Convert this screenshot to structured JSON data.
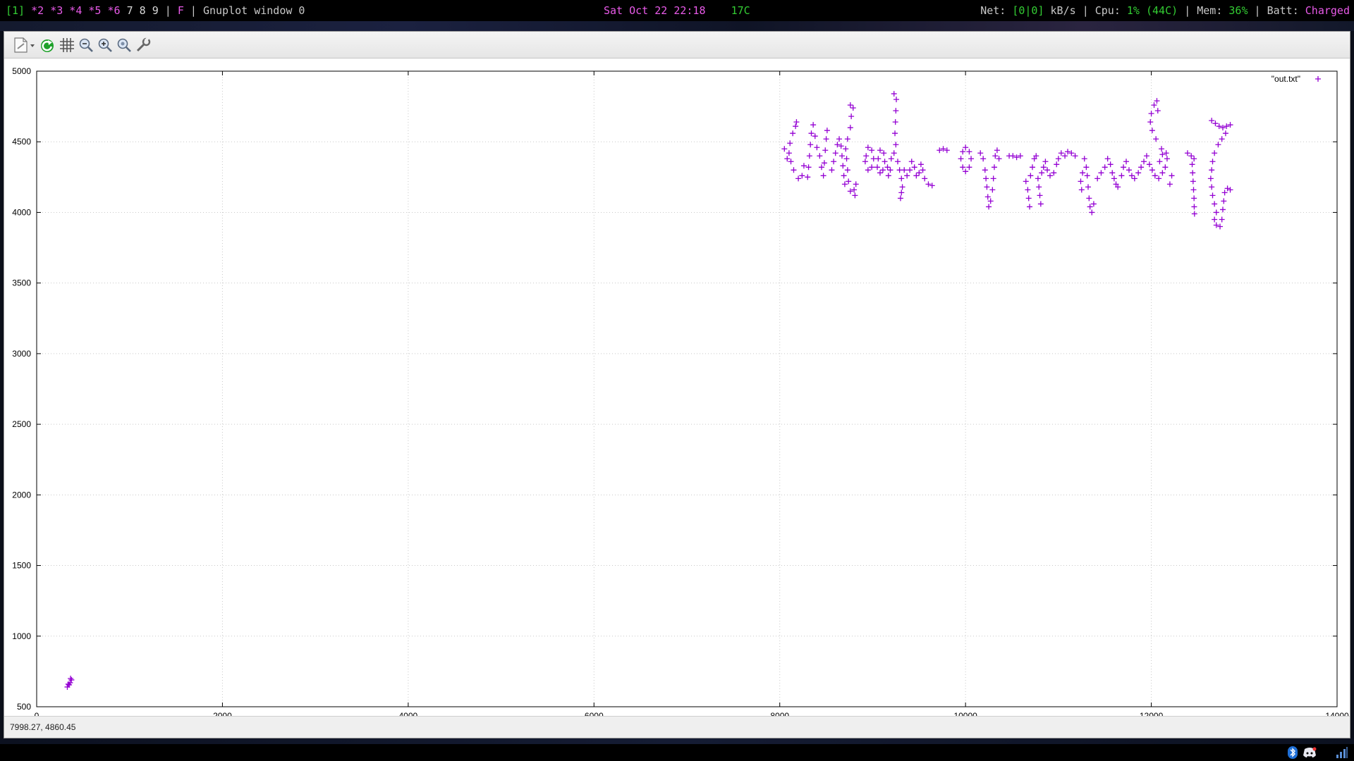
{
  "statusbar_top": {
    "workspace_current": "[1]",
    "workspaces_active": "*2 *3 *4 *5 *6",
    "workspaces_idle": "7 8 9",
    "separator": "|",
    "layout": "F",
    "window_title": "Gnuplot window 0",
    "datetime": "Sat Oct 22 22:18",
    "temperature": "17C",
    "net_label": "Net:",
    "net_value": "[0|0]",
    "net_unit": "kB/s",
    "cpu_label": "Cpu:",
    "cpu_value": "1%",
    "cpu_temp": "(44C)",
    "mem_label": "Mem:",
    "mem_value": "36%",
    "batt_label": "Batt:",
    "batt_value": "Charged"
  },
  "toolbar": {
    "icons": [
      "export-icon",
      "replot-icon",
      "grid-icon",
      "zoom-out-icon",
      "zoom-in-icon",
      "zoom-fit-icon",
      "settings-icon"
    ]
  },
  "plot_status": {
    "coordinates": "7998.27,  4860.45"
  },
  "colors": {
    "series": "#9400d3",
    "grid": "#c8c8c8",
    "accent_green": "#33cc33",
    "accent_magenta": "#e85ae8"
  },
  "chart_data": {
    "type": "scatter",
    "title": "",
    "xlabel": "",
    "ylabel": "",
    "xlim": [
      0,
      14000
    ],
    "ylim": [
      500,
      5000
    ],
    "xticks": [
      "0",
      "2000",
      "4000",
      "6000",
      "8000",
      "10000",
      "12000",
      "14000"
    ],
    "yticks": [
      "500",
      "1000",
      "1500",
      "2000",
      "2500",
      "3000",
      "3500",
      "4000",
      "4500",
      "5000"
    ],
    "grid": true,
    "legend_position": "top-right",
    "marker": "+",
    "series": [
      {
        "name": "\"out.txt\"",
        "points": [
          [
            330,
            640
          ],
          [
            350,
            655
          ],
          [
            360,
            670
          ],
          [
            375,
            690
          ],
          [
            340,
            660
          ],
          [
            365,
            700
          ],
          [
            8120,
            4360
          ],
          [
            8100,
            4420
          ],
          [
            8110,
            4490
          ],
          [
            8140,
            4560
          ],
          [
            8170,
            4610
          ],
          [
            8180,
            4640
          ],
          [
            8150,
            4300
          ],
          [
            8200,
            4240
          ],
          [
            8240,
            4260
          ],
          [
            8260,
            4330
          ],
          [
            8050,
            4450
          ],
          [
            8080,
            4380
          ],
          [
            8300,
            4250
          ],
          [
            8310,
            4320
          ],
          [
            8320,
            4400
          ],
          [
            8330,
            4480
          ],
          [
            8340,
            4560
          ],
          [
            8360,
            4620
          ],
          [
            8380,
            4540
          ],
          [
            8400,
            4460
          ],
          [
            8430,
            4400
          ],
          [
            8450,
            4320
          ],
          [
            8470,
            4260
          ],
          [
            8480,
            4350
          ],
          [
            8490,
            4440
          ],
          [
            8500,
            4520
          ],
          [
            8510,
            4580
          ],
          [
            8560,
            4300
          ],
          [
            8580,
            4360
          ],
          [
            8600,
            4420
          ],
          [
            8620,
            4480
          ],
          [
            8640,
            4520
          ],
          [
            8660,
            4470
          ],
          [
            8670,
            4400
          ],
          [
            8680,
            4330
          ],
          [
            8690,
            4260
          ],
          [
            8700,
            4200
          ],
          [
            8760,
            4150
          ],
          [
            8740,
            4220
          ],
          [
            8730,
            4300
          ],
          [
            8720,
            4380
          ],
          [
            8710,
            4450
          ],
          [
            8730,
            4520
          ],
          [
            8760,
            4600
          ],
          [
            8770,
            4680
          ],
          [
            8760,
            4760
          ],
          [
            8790,
            4740
          ],
          [
            8800,
            4160
          ],
          [
            8810,
            4120
          ],
          [
            8820,
            4200
          ],
          [
            8920,
            4360
          ],
          [
            8950,
            4300
          ],
          [
            8990,
            4320
          ],
          [
            9010,
            4380
          ],
          [
            8990,
            4440
          ],
          [
            8950,
            4460
          ],
          [
            8930,
            4400
          ],
          [
            9050,
            4320
          ],
          [
            9080,
            4280
          ],
          [
            9110,
            4300
          ],
          [
            9130,
            4360
          ],
          [
            9120,
            4420
          ],
          [
            9080,
            4440
          ],
          [
            9060,
            4380
          ],
          [
            9160,
            4320
          ],
          [
            9170,
            4260
          ],
          [
            9190,
            4300
          ],
          [
            9200,
            4380
          ],
          [
            9230,
            4420
          ],
          [
            9250,
            4480
          ],
          [
            9240,
            4560
          ],
          [
            9245,
            4640
          ],
          [
            9250,
            4720
          ],
          [
            9255,
            4800
          ],
          [
            9230,
            4840
          ],
          [
            9270,
            4360
          ],
          [
            9290,
            4300
          ],
          [
            9310,
            4240
          ],
          [
            9320,
            4180
          ],
          [
            9300,
            4100
          ],
          [
            9310,
            4140
          ],
          [
            9340,
            4300
          ],
          [
            9370,
            4260
          ],
          [
            9400,
            4300
          ],
          [
            9420,
            4360
          ],
          [
            9450,
            4320
          ],
          [
            9470,
            4260
          ],
          [
            9500,
            4280
          ],
          [
            9520,
            4340
          ],
          [
            9540,
            4300
          ],
          [
            9560,
            4240
          ],
          [
            9600,
            4200
          ],
          [
            9640,
            4190
          ],
          [
            9720,
            4440
          ],
          [
            9760,
            4450
          ],
          [
            9800,
            4440
          ],
          [
            9950,
            4380
          ],
          [
            9970,
            4320
          ],
          [
            10000,
            4290
          ],
          [
            10040,
            4320
          ],
          [
            10060,
            4380
          ],
          [
            10040,
            4430
          ],
          [
            10000,
            4460
          ],
          [
            9970,
            4430
          ],
          [
            10160,
            4420
          ],
          [
            10190,
            4380
          ],
          [
            10210,
            4300
          ],
          [
            10220,
            4240
          ],
          [
            10230,
            4180
          ],
          [
            10240,
            4110
          ],
          [
            10250,
            4040
          ],
          [
            10270,
            4080
          ],
          [
            10290,
            4160
          ],
          [
            10300,
            4240
          ],
          [
            10310,
            4320
          ],
          [
            10320,
            4400
          ],
          [
            10340,
            4440
          ],
          [
            10360,
            4380
          ],
          [
            10470,
            4400
          ],
          [
            10510,
            4400
          ],
          [
            10550,
            4390
          ],
          [
            10590,
            4400
          ],
          [
            10650,
            4220
          ],
          [
            10670,
            4160
          ],
          [
            10680,
            4100
          ],
          [
            10690,
            4040
          ],
          [
            10700,
            4260
          ],
          [
            10720,
            4320
          ],
          [
            10740,
            4380
          ],
          [
            10760,
            4400
          ],
          [
            10780,
            4240
          ],
          [
            10790,
            4180
          ],
          [
            10800,
            4120
          ],
          [
            10810,
            4060
          ],
          [
            10820,
            4280
          ],
          [
            10840,
            4320
          ],
          [
            10860,
            4360
          ],
          [
            10880,
            4300
          ],
          [
            10910,
            4260
          ],
          [
            10950,
            4280
          ],
          [
            10980,
            4340
          ],
          [
            11000,
            4380
          ],
          [
            11030,
            4420
          ],
          [
            11070,
            4400
          ],
          [
            11100,
            4430
          ],
          [
            11140,
            4420
          ],
          [
            11180,
            4400
          ],
          [
            11280,
            4380
          ],
          [
            11300,
            4320
          ],
          [
            11310,
            4260
          ],
          [
            11320,
            4180
          ],
          [
            11330,
            4100
          ],
          [
            11340,
            4040
          ],
          [
            11360,
            4000
          ],
          [
            11380,
            4060
          ],
          [
            11260,
            4280
          ],
          [
            11240,
            4220
          ],
          [
            11250,
            4160
          ],
          [
            11420,
            4240
          ],
          [
            11460,
            4280
          ],
          [
            11500,
            4320
          ],
          [
            11530,
            4380
          ],
          [
            11560,
            4340
          ],
          [
            11580,
            4280
          ],
          [
            11600,
            4240
          ],
          [
            11620,
            4200
          ],
          [
            11640,
            4180
          ],
          [
            11680,
            4260
          ],
          [
            11700,
            4320
          ],
          [
            11730,
            4360
          ],
          [
            11760,
            4300
          ],
          [
            11790,
            4260
          ],
          [
            11820,
            4240
          ],
          [
            11860,
            4280
          ],
          [
            11890,
            4320
          ],
          [
            11920,
            4360
          ],
          [
            11950,
            4400
          ],
          [
            11980,
            4340
          ],
          [
            12010,
            4300
          ],
          [
            12040,
            4260
          ],
          [
            12080,
            4240
          ],
          [
            12120,
            4280
          ],
          [
            12150,
            4320
          ],
          [
            12170,
            4380
          ],
          [
            12160,
            4420
          ],
          [
            12120,
            4410
          ],
          [
            12090,
            4360
          ],
          [
            12110,
            4450
          ],
          [
            12050,
            4520
          ],
          [
            12010,
            4580
          ],
          [
            11990,
            4640
          ],
          [
            12000,
            4700
          ],
          [
            12030,
            4760
          ],
          [
            12060,
            4790
          ],
          [
            12070,
            4720
          ],
          [
            12200,
            4200
          ],
          [
            12220,
            4260
          ],
          [
            12390,
            4420
          ],
          [
            12430,
            4400
          ],
          [
            12460,
            4380
          ],
          [
            12440,
            4340
          ],
          [
            12445,
            4280
          ],
          [
            12450,
            4220
          ],
          [
            12455,
            4160
          ],
          [
            12460,
            4100
          ],
          [
            12462,
            4040
          ],
          [
            12465,
            3990
          ],
          [
            12650,
            4650
          ],
          [
            12690,
            4630
          ],
          [
            12730,
            4610
          ],
          [
            12770,
            4600
          ],
          [
            12810,
            4610
          ],
          [
            12850,
            4620
          ],
          [
            12800,
            4560
          ],
          [
            12760,
            4520
          ],
          [
            12720,
            4480
          ],
          [
            12680,
            4420
          ],
          [
            12660,
            4360
          ],
          [
            12650,
            4300
          ],
          [
            12640,
            4240
          ],
          [
            12650,
            4180
          ],
          [
            12660,
            4120
          ],
          [
            12680,
            4060
          ],
          [
            12700,
            4000
          ],
          [
            12680,
            3950
          ],
          [
            12700,
            3910
          ],
          [
            12740,
            3900
          ],
          [
            12760,
            3950
          ],
          [
            12770,
            4020
          ],
          [
            12780,
            4080
          ],
          [
            12790,
            4140
          ],
          [
            12820,
            4170
          ],
          [
            12850,
            4160
          ]
        ]
      }
    ]
  }
}
